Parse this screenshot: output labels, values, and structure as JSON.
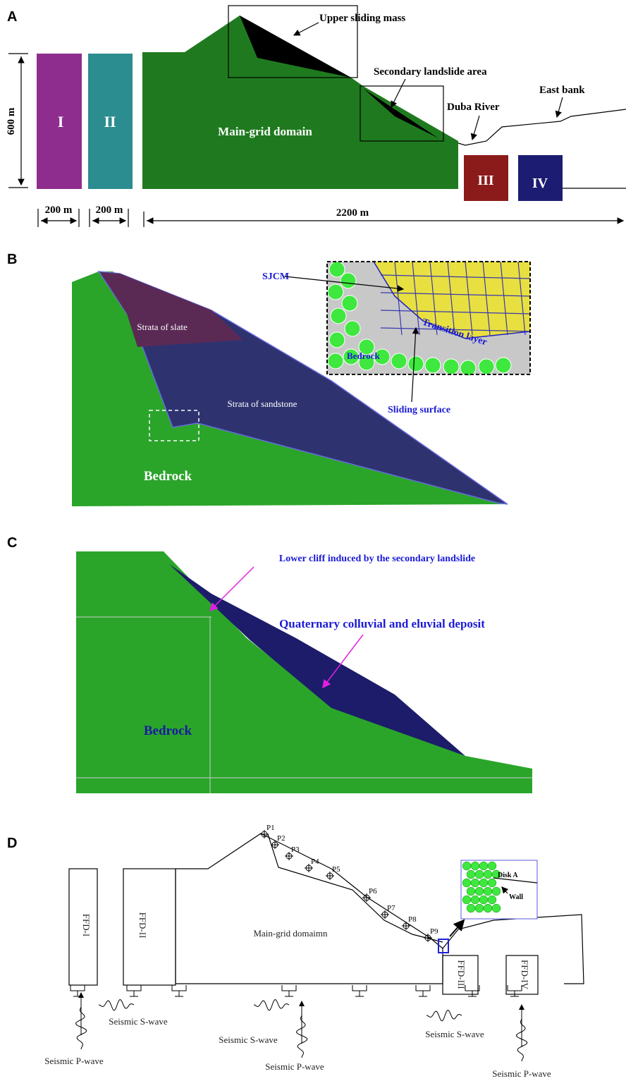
{
  "panel_a": {
    "label": "A",
    "blocks": [
      "I",
      "II",
      "III",
      "IV"
    ],
    "main": "Main-grid domain",
    "annotations": [
      "Upper sliding mass",
      "Secondary landslide area",
      "Duba River",
      "East bank"
    ],
    "dimensions": [
      "600 m",
      "200 m",
      "200 m",
      "2200 m"
    ]
  },
  "panel_b": {
    "label": "B",
    "strata": [
      "Strata of slate",
      "Strata of sandstone"
    ],
    "bedrock": "Bedrock",
    "inset": {
      "sjcm": "SJCM",
      "transition": "Transition layer",
      "bedrock": "Bedrock",
      "sliding": "Sliding surface"
    }
  },
  "panel_c": {
    "label": "C",
    "cliff": "Lower cliff induced by the secondary landslide",
    "deposit": "Quaternary colluvial and eluvial deposit",
    "bedrock": "Bedrock"
  },
  "panel_d": {
    "label": "D",
    "points": [
      "P1",
      "P2",
      "P3",
      "P4",
      "P5",
      "P6",
      "P7",
      "P8",
      "P9"
    ],
    "ffd": [
      "FFD-I",
      "FFD-II",
      "FFD-III",
      "FFD-IV"
    ],
    "main": "Main-grid domaimn",
    "inset": [
      "Disk A",
      "Wall"
    ],
    "waves": [
      "Seismic S-wave",
      "Seismic P-wave",
      "Seismic S-wave",
      "Seismic P-wave",
      "Seismic S-wave",
      "Seismic P-wave"
    ]
  }
}
